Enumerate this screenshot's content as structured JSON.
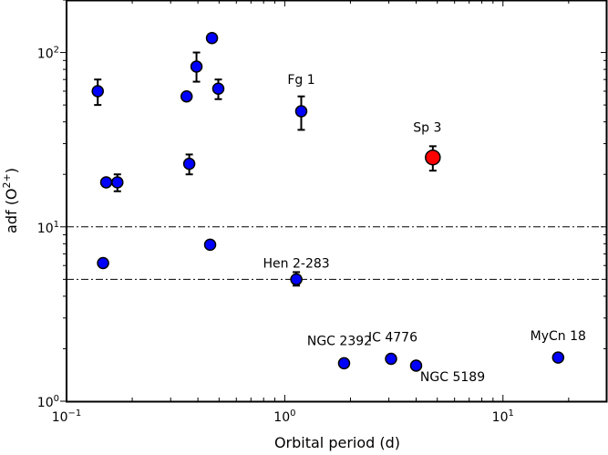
{
  "chart_data": {
    "type": "scatter",
    "title": "",
    "xlabel": "Orbital period (d)",
    "ylabel": "adf (O",
    "ylabel_sup": "2+",
    "ylabel_close": ")",
    "xscale": "log",
    "yscale": "log",
    "xlim": [
      0.1,
      30
    ],
    "ylim": [
      1,
      200
    ],
    "grid": false,
    "x_ticks": [
      {
        "value": 0.1,
        "base": "10",
        "exp": "−1"
      },
      {
        "value": 1,
        "base": "10",
        "exp": "0"
      },
      {
        "value": 10,
        "base": "10",
        "exp": "1"
      }
    ],
    "y_ticks": [
      {
        "value": 1,
        "base": "10",
        "exp": "0"
      },
      {
        "value": 10,
        "base": "10",
        "exp": "1"
      },
      {
        "value": 100,
        "base": "10",
        "exp": "2"
      }
    ],
    "hlines": [
      10,
      5
    ],
    "colors": {
      "default": "#0000ff",
      "highlight": "#ff0000"
    },
    "points": [
      {
        "x": 0.139,
        "y": 60,
        "err": [
          50,
          70
        ]
      },
      {
        "x": 0.152,
        "y": 18
      },
      {
        "x": 0.171,
        "y": 18,
        "err": [
          16,
          20
        ]
      },
      {
        "x": 0.147,
        "y": 6.2
      },
      {
        "x": 0.355,
        "y": 56
      },
      {
        "x": 0.365,
        "y": 23,
        "err": [
          20,
          26
        ]
      },
      {
        "x": 0.394,
        "y": 83,
        "err": [
          68,
          100
        ]
      },
      {
        "x": 0.464,
        "y": 121
      },
      {
        "x": 0.496,
        "y": 62,
        "err": [
          54,
          70
        ]
      },
      {
        "x": 0.455,
        "y": 7.9
      },
      {
        "x": 1.19,
        "y": 46,
        "err": [
          36,
          56
        ],
        "label": "Fg 1"
      },
      {
        "x": 4.77,
        "y": 25,
        "err": [
          21,
          29
        ],
        "label": "Sp 3",
        "highlight": true
      },
      {
        "x": 1.13,
        "y": 5.0,
        "err": [
          4.6,
          5.5
        ],
        "label": "Hen 2-283"
      },
      {
        "x": 1.87,
        "y": 1.65,
        "label": "NGC 2392"
      },
      {
        "x": 3.07,
        "y": 1.75,
        "label": "IC 4776"
      },
      {
        "x": 4.0,
        "y": 1.6,
        "label": "NGC 5189"
      },
      {
        "x": 17.9,
        "y": 1.78,
        "label": "MyCn 18"
      }
    ]
  }
}
